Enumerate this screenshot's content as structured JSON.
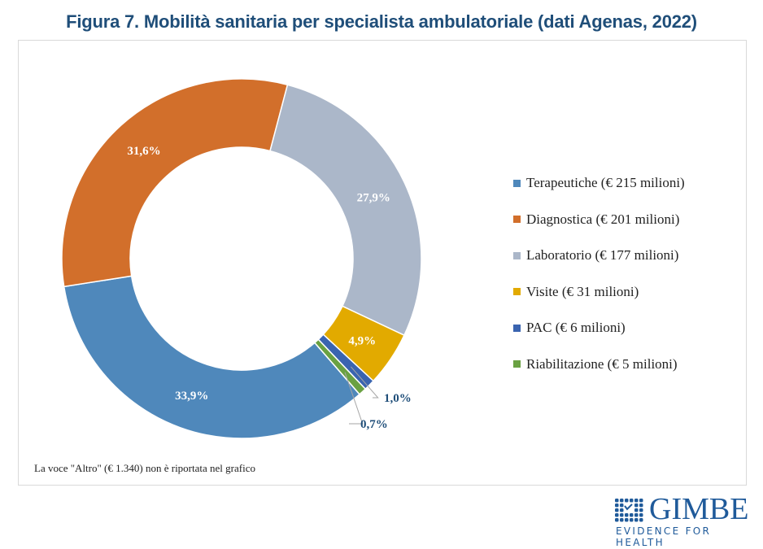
{
  "title": "Figura 7. Mobilità sanitaria per specialista ambulatoriale (dati Agenas, 2022)",
  "note": "La voce \"Altro\" (€ 1.340) non è riportata nel grafico",
  "logo": {
    "name": "GIMBE",
    "tagline": "EVIDENCE FOR HEALTH",
    "color": "#1f5a9a"
  },
  "chart_data": {
    "type": "pie",
    "variant": "donut",
    "title": "Figura 7. Mobilità sanitaria per specialista ambulatoriale (dati Agenas, 2022)",
    "legend_position": "right",
    "start_angle_deg": 139,
    "direction": "clockwise",
    "slices": [
      {
        "name": "Terapeutiche",
        "legend": "Terapeutiche (€ 215 milioni)",
        "value_millions": 215,
        "percent": 33.9,
        "label": "33,9%",
        "color": "#4f88bb",
        "label_style": "inside"
      },
      {
        "name": "Diagnostica",
        "legend": "Diagnostica (€ 201 milioni)",
        "value_millions": 201,
        "percent": 31.6,
        "label": "31,6%",
        "color": "#d26f2b",
        "label_style": "inside"
      },
      {
        "name": "Laboratorio",
        "legend": "Laboratorio (€ 177 milioni)",
        "value_millions": 177,
        "percent": 27.9,
        "label": "27,9%",
        "color": "#abb7c9",
        "label_style": "inside"
      },
      {
        "name": "Visite",
        "legend": "Visite (€ 31 milioni)",
        "value_millions": 31,
        "percent": 4.9,
        "label": "4,9%",
        "color": "#e2aa00",
        "label_style": "inside"
      },
      {
        "name": "PAC",
        "legend": "PAC (€ 6 milioni)",
        "value_millions": 6,
        "percent": 1.0,
        "label": "1,0%",
        "color": "#3a64b0",
        "label_style": "callout"
      },
      {
        "name": "Riabilitazione",
        "legend": "Riabilitazione (€ 5 milioni)",
        "value_millions": 5,
        "percent": 0.7,
        "label": "0,7%",
        "color": "#6aa142",
        "label_style": "callout"
      }
    ],
    "callout_label_color": "#1f4e79",
    "inside_label_color": "#ffffff"
  }
}
